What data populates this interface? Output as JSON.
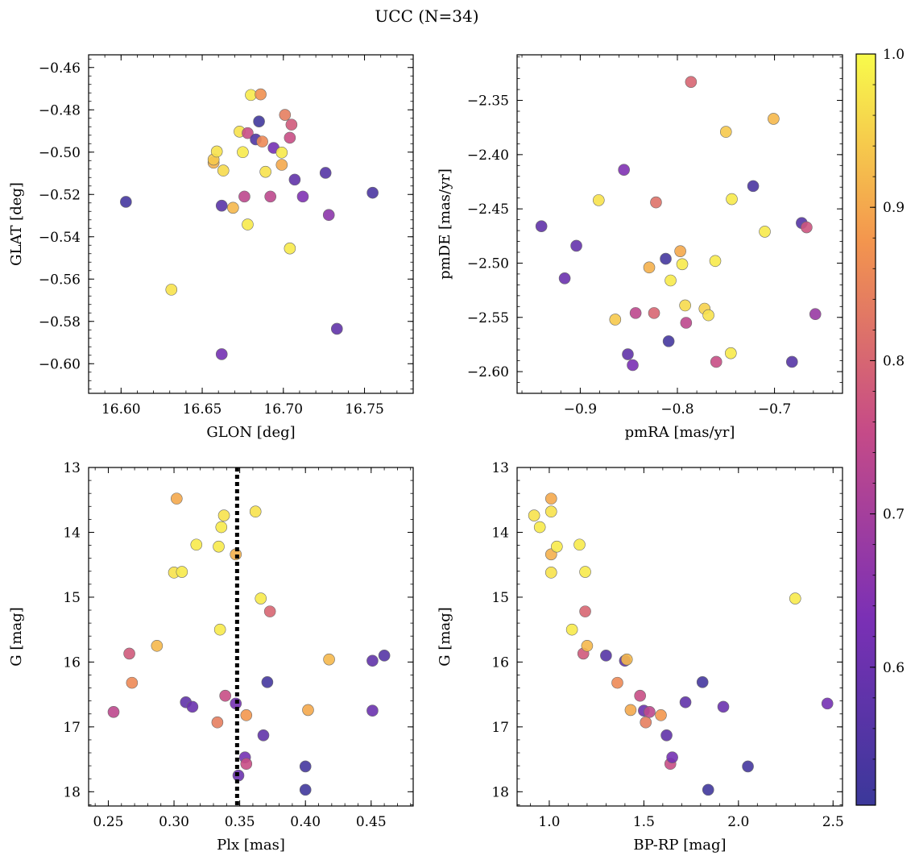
{
  "figure": {
    "title": "UCC (N=34)",
    "colorbar": {
      "range": [
        0.51,
        1.0
      ],
      "ticks": [
        0.6,
        0.7,
        0.8,
        0.9,
        1.0
      ],
      "tick_labels": [
        "0.6",
        "0.7",
        "0.8",
        "0.9",
        "1.0"
      ],
      "colormap": "plasma"
    }
  },
  "chart_data": [
    {
      "type": "scatter",
      "xlabel": "GLON [deg]",
      "ylabel": "GLAT [deg]",
      "xlim": [
        16.58,
        16.78
      ],
      "ylim": [
        -0.614,
        -0.454
      ],
      "xticks": [
        16.6,
        16.65,
        16.7,
        16.75
      ],
      "xtick_labels": [
        "16.60",
        "16.65",
        "16.70",
        "16.75"
      ],
      "yticks": [
        -0.46,
        -0.48,
        -0.5,
        -0.52,
        -0.54,
        -0.56,
        -0.58,
        -0.6
      ],
      "ytick_labels": [
        "−0.46",
        "−0.48",
        "−0.50",
        "−0.52",
        "−0.54",
        "−0.56",
        "−0.58",
        "−0.60"
      ],
      "y_inverted": false,
      "points": [
        {
          "x": 16.603,
          "y": -0.5235,
          "c": 0.53
        },
        {
          "x": 16.631,
          "y": -0.565,
          "c": 0.97
        },
        {
          "x": 16.657,
          "y": -0.505,
          "c": 0.91
        },
        {
          "x": 16.657,
          "y": -0.5035,
          "c": 0.94
        },
        {
          "x": 16.659,
          "y": -0.4997,
          "c": 0.97
        },
        {
          "x": 16.662,
          "y": -0.5253,
          "c": 0.57
        },
        {
          "x": 16.662,
          "y": -0.5955,
          "c": 0.62
        },
        {
          "x": 16.663,
          "y": -0.5087,
          "c": 0.96
        },
        {
          "x": 16.669,
          "y": -0.5263,
          "c": 0.92
        },
        {
          "x": 16.673,
          "y": -0.4903,
          "c": 0.97
        },
        {
          "x": 16.675,
          "y": -0.5,
          "c": 0.98
        },
        {
          "x": 16.676,
          "y": -0.521,
          "c": 0.74
        },
        {
          "x": 16.678,
          "y": -0.5342,
          "c": 0.98
        },
        {
          "x": 16.678,
          "y": -0.491,
          "c": 0.76
        },
        {
          "x": 16.68,
          "y": -0.473,
          "c": 0.98
        },
        {
          "x": 16.683,
          "y": -0.494,
          "c": 0.55
        },
        {
          "x": 16.685,
          "y": -0.4855,
          "c": 0.52
        },
        {
          "x": 16.686,
          "y": -0.4727,
          "c": 0.87
        },
        {
          "x": 16.687,
          "y": -0.495,
          "c": 0.86
        },
        {
          "x": 16.689,
          "y": -0.5093,
          "c": 0.97
        },
        {
          "x": 16.692,
          "y": -0.521,
          "c": 0.74
        },
        {
          "x": 16.694,
          "y": -0.498,
          "c": 0.62
        },
        {
          "x": 16.699,
          "y": -0.506,
          "c": 0.9
        },
        {
          "x": 16.699,
          "y": -0.5002,
          "c": 0.98
        },
        {
          "x": 16.701,
          "y": -0.4824,
          "c": 0.84
        },
        {
          "x": 16.704,
          "y": -0.5455,
          "c": 0.98
        },
        {
          "x": 16.704,
          "y": -0.4932,
          "c": 0.76
        },
        {
          "x": 16.705,
          "y": -0.487,
          "c": 0.78
        },
        {
          "x": 16.707,
          "y": -0.513,
          "c": 0.58
        },
        {
          "x": 16.712,
          "y": -0.521,
          "c": 0.64
        },
        {
          "x": 16.726,
          "y": -0.5098,
          "c": 0.56
        },
        {
          "x": 16.728,
          "y": -0.5297,
          "c": 0.66
        },
        {
          "x": 16.733,
          "y": -0.5835,
          "c": 0.58
        },
        {
          "x": 16.755,
          "y": -0.5192,
          "c": 0.54
        }
      ]
    },
    {
      "type": "scatter",
      "xlabel": "pmRA [mas/yr]",
      "ylabel": "pmDE [mas/yr]",
      "xlim": [
        -0.965,
        -0.63
      ],
      "ylim": [
        -2.62,
        -2.308
      ],
      "xticks": [
        -0.9,
        -0.8,
        -0.7
      ],
      "xtick_labels": [
        "−0.9",
        "−0.8",
        "−0.7"
      ],
      "yticks": [
        -2.35,
        -2.4,
        -2.45,
        -2.5,
        -2.55,
        -2.6
      ],
      "ytick_labels": [
        "−2.35",
        "−2.40",
        "−2.45",
        "−2.50",
        "−2.55",
        "−2.60"
      ],
      "y_inverted": false,
      "points": [
        {
          "x": -0.94,
          "y": -2.466,
          "c": 0.58
        },
        {
          "x": -0.916,
          "y": -2.514,
          "c": 0.6
        },
        {
          "x": -0.904,
          "y": -2.484,
          "c": 0.59
        },
        {
          "x": -0.881,
          "y": -2.442,
          "c": 0.97
        },
        {
          "x": -0.864,
          "y": -2.552,
          "c": 0.94
        },
        {
          "x": -0.855,
          "y": -2.414,
          "c": 0.64
        },
        {
          "x": -0.851,
          "y": -2.584,
          "c": 0.58
        },
        {
          "x": -0.846,
          "y": -2.594,
          "c": 0.63
        },
        {
          "x": -0.843,
          "y": -2.546,
          "c": 0.74
        },
        {
          "x": -0.829,
          "y": -2.504,
          "c": 0.91
        },
        {
          "x": -0.824,
          "y": -2.546,
          "c": 0.8
        },
        {
          "x": -0.822,
          "y": -2.444,
          "c": 0.82
        },
        {
          "x": -0.812,
          "y": -2.496,
          "c": 0.53
        },
        {
          "x": -0.809,
          "y": -2.572,
          "c": 0.53
        },
        {
          "x": -0.807,
          "y": -2.516,
          "c": 0.98
        },
        {
          "x": -0.797,
          "y": -2.489,
          "c": 0.9
        },
        {
          "x": -0.795,
          "y": -2.501,
          "c": 0.98
        },
        {
          "x": -0.792,
          "y": -2.539,
          "c": 0.96
        },
        {
          "x": -0.791,
          "y": -2.555,
          "c": 0.74
        },
        {
          "x": -0.786,
          "y": -2.333,
          "c": 0.8
        },
        {
          "x": -0.772,
          "y": -2.542,
          "c": 0.95
        },
        {
          "x": -0.768,
          "y": -2.548,
          "c": 0.97
        },
        {
          "x": -0.761,
          "y": -2.498,
          "c": 0.98
        },
        {
          "x": -0.76,
          "y": -2.591,
          "c": 0.76
        },
        {
          "x": -0.75,
          "y": -2.379,
          "c": 0.94
        },
        {
          "x": -0.745,
          "y": -2.583,
          "c": 0.98
        },
        {
          "x": -0.744,
          "y": -2.441,
          "c": 0.98
        },
        {
          "x": -0.722,
          "y": -2.429,
          "c": 0.54
        },
        {
          "x": -0.71,
          "y": -2.471,
          "c": 0.98
        },
        {
          "x": -0.701,
          "y": -2.367,
          "c": 0.92
        },
        {
          "x": -0.682,
          "y": -2.591,
          "c": 0.56
        },
        {
          "x": -0.672,
          "y": -2.463,
          "c": 0.56
        },
        {
          "x": -0.667,
          "y": -2.467,
          "c": 0.77
        },
        {
          "x": -0.658,
          "y": -2.547,
          "c": 0.68
        }
      ]
    },
    {
      "type": "scatter",
      "xlabel": "Plx [mas]",
      "ylabel": "G [mag]",
      "xlim": [
        0.235,
        0.482
      ],
      "ylim": [
        13.0,
        18.22
      ],
      "xticks": [
        0.25,
        0.3,
        0.35,
        0.4,
        0.45
      ],
      "xtick_labels": [
        "0.25",
        "0.30",
        "0.35",
        "0.40",
        "0.45"
      ],
      "yticks": [
        13,
        14,
        15,
        16,
        17,
        18
      ],
      "ytick_labels": [
        "13",
        "14",
        "15",
        "16",
        "17",
        "18"
      ],
      "y_inverted": true,
      "vline": {
        "x": 0.348
      },
      "points": [
        {
          "x": 0.254,
          "y": 16.77,
          "c": 0.74
        },
        {
          "x": 0.266,
          "y": 15.87,
          "c": 0.78
        },
        {
          "x": 0.268,
          "y": 16.32,
          "c": 0.86
        },
        {
          "x": 0.287,
          "y": 15.75,
          "c": 0.92
        },
        {
          "x": 0.3,
          "y": 14.62,
          "c": 0.97
        },
        {
          "x": 0.302,
          "y": 13.48,
          "c": 0.9
        },
        {
          "x": 0.306,
          "y": 14.61,
          "c": 0.98
        },
        {
          "x": 0.309,
          "y": 16.62,
          "c": 0.58
        },
        {
          "x": 0.314,
          "y": 16.69,
          "c": 0.6
        },
        {
          "x": 0.317,
          "y": 14.19,
          "c": 0.98
        },
        {
          "x": 0.333,
          "y": 16.93,
          "c": 0.84
        },
        {
          "x": 0.334,
          "y": 14.22,
          "c": 0.98
        },
        {
          "x": 0.335,
          "y": 15.5,
          "c": 0.98
        },
        {
          "x": 0.336,
          "y": 13.92,
          "c": 0.98
        },
        {
          "x": 0.338,
          "y": 13.74,
          "c": 0.97
        },
        {
          "x": 0.339,
          "y": 16.52,
          "c": 0.76
        },
        {
          "x": 0.347,
          "y": 14.34,
          "c": 0.91
        },
        {
          "x": 0.347,
          "y": 16.64,
          "c": 0.62
        },
        {
          "x": 0.349,
          "y": 17.75,
          "c": 0.6
        },
        {
          "x": 0.354,
          "y": 17.47,
          "c": 0.62
        },
        {
          "x": 0.355,
          "y": 17.57,
          "c": 0.76
        },
        {
          "x": 0.355,
          "y": 16.82,
          "c": 0.88
        },
        {
          "x": 0.362,
          "y": 13.68,
          "c": 0.97
        },
        {
          "x": 0.366,
          "y": 15.02,
          "c": 0.98
        },
        {
          "x": 0.368,
          "y": 17.13,
          "c": 0.58
        },
        {
          "x": 0.371,
          "y": 16.31,
          "c": 0.53
        },
        {
          "x": 0.373,
          "y": 15.22,
          "c": 0.8
        },
        {
          "x": 0.4,
          "y": 17.61,
          "c": 0.53
        },
        {
          "x": 0.4,
          "y": 17.97,
          "c": 0.52
        },
        {
          "x": 0.402,
          "y": 16.74,
          "c": 0.9
        },
        {
          "x": 0.418,
          "y": 15.96,
          "c": 0.92
        },
        {
          "x": 0.451,
          "y": 15.98,
          "c": 0.58
        },
        {
          "x": 0.451,
          "y": 16.75,
          "c": 0.6
        },
        {
          "x": 0.46,
          "y": 15.9,
          "c": 0.56
        }
      ]
    },
    {
      "type": "scatter",
      "xlabel": "BP-RP [mag]",
      "ylabel": "G [mag]",
      "xlim": [
        0.83,
        2.55
      ],
      "ylim": [
        13.0,
        18.22
      ],
      "xticks": [
        1.0,
        1.5,
        2.0,
        2.5
      ],
      "xtick_labels": [
        "1.0",
        "1.5",
        "2.0",
        "2.5"
      ],
      "yticks": [
        13,
        14,
        15,
        16,
        17,
        18
      ],
      "ytick_labels": [
        "13",
        "14",
        "15",
        "16",
        "17",
        "18"
      ],
      "y_inverted": true,
      "points": [
        {
          "x": 0.92,
          "y": 13.74,
          "c": 0.97
        },
        {
          "x": 0.95,
          "y": 13.92,
          "c": 0.98
        },
        {
          "x": 1.01,
          "y": 13.48,
          "c": 0.9
        },
        {
          "x": 1.01,
          "y": 13.68,
          "c": 0.97
        },
        {
          "x": 1.01,
          "y": 14.34,
          "c": 0.91
        },
        {
          "x": 1.01,
          "y": 14.62,
          "c": 0.97
        },
        {
          "x": 1.04,
          "y": 14.22,
          "c": 0.98
        },
        {
          "x": 1.12,
          "y": 15.5,
          "c": 0.98
        },
        {
          "x": 1.16,
          "y": 14.19,
          "c": 0.98
        },
        {
          "x": 1.19,
          "y": 14.61,
          "c": 0.98
        },
        {
          "x": 1.19,
          "y": 15.22,
          "c": 0.8
        },
        {
          "x": 1.18,
          "y": 15.87,
          "c": 0.78
        },
        {
          "x": 1.2,
          "y": 15.75,
          "c": 0.92
        },
        {
          "x": 1.3,
          "y": 15.9,
          "c": 0.56
        },
        {
          "x": 1.36,
          "y": 16.32,
          "c": 0.86
        },
        {
          "x": 1.4,
          "y": 15.98,
          "c": 0.58
        },
        {
          "x": 1.41,
          "y": 15.96,
          "c": 0.92
        },
        {
          "x": 1.43,
          "y": 16.74,
          "c": 0.9
        },
        {
          "x": 1.48,
          "y": 16.52,
          "c": 0.76
        },
        {
          "x": 1.5,
          "y": 16.75,
          "c": 0.6
        },
        {
          "x": 1.51,
          "y": 16.93,
          "c": 0.84
        },
        {
          "x": 1.53,
          "y": 16.77,
          "c": 0.74
        },
        {
          "x": 1.59,
          "y": 16.82,
          "c": 0.88
        },
        {
          "x": 1.62,
          "y": 17.13,
          "c": 0.58
        },
        {
          "x": 1.64,
          "y": 17.57,
          "c": 0.76
        },
        {
          "x": 1.65,
          "y": 17.47,
          "c": 0.62
        },
        {
          "x": 1.72,
          "y": 16.62,
          "c": 0.58
        },
        {
          "x": 1.81,
          "y": 16.31,
          "c": 0.53
        },
        {
          "x": 1.84,
          "y": 17.97,
          "c": 0.52
        },
        {
          "x": 1.92,
          "y": 16.69,
          "c": 0.6
        },
        {
          "x": 2.05,
          "y": 17.61,
          "c": 0.53
        },
        {
          "x": 2.3,
          "y": 15.02,
          "c": 0.98
        },
        {
          "x": 2.47,
          "y": 16.64,
          "c": 0.62
        }
      ]
    }
  ]
}
